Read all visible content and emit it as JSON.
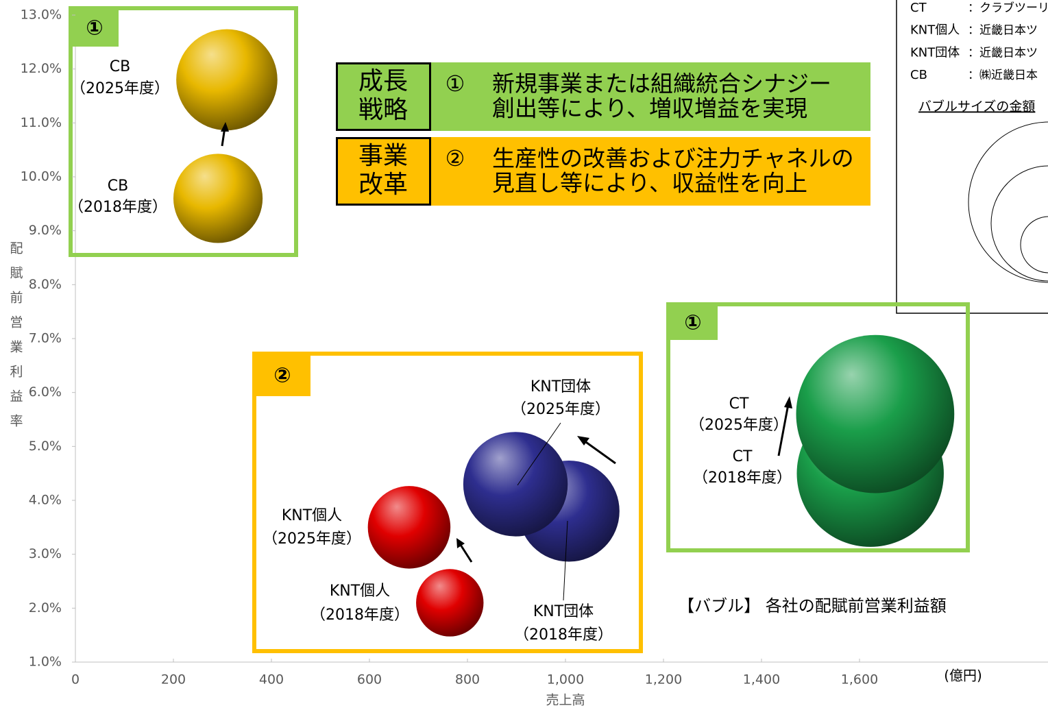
{
  "chart_data": {
    "type": "bubble",
    "xlabel": "売上高",
    "ylabel": "配賦前営業利益率",
    "x_unit": "(億円)",
    "xlim": [
      0,
      1980
    ],
    "ylim": [
      1,
      13
    ],
    "xticks": [
      0,
      200,
      400,
      600,
      800,
      {
        "value": 1000,
        "label": "1,000"
      },
      {
        "value": 1200,
        "label": "1,200"
      },
      {
        "value": 1400,
        "label": "1,400"
      },
      {
        "value": 1600,
        "label": "1,600"
      }
    ],
    "yticks": [
      {
        "value": 1,
        "label": "1.0%"
      },
      {
        "value": 2,
        "label": "2.0%"
      },
      {
        "value": 3,
        "label": "3.0%"
      },
      {
        "value": 4,
        "label": "4.0%"
      },
      {
        "value": 5,
        "label": "5.0%"
      },
      {
        "value": 6,
        "label": "6.0%"
      },
      {
        "value": 7,
        "label": "7.0%"
      },
      {
        "value": 8,
        "label": "8.0%"
      },
      {
        "value": 9,
        "label": "9.0%"
      },
      {
        "value": 10,
        "label": "10.0%"
      },
      {
        "value": 11,
        "label": "11.0%"
      },
      {
        "value": 12,
        "label": "12.0%"
      },
      {
        "value": 13,
        "label": "13.0%"
      }
    ],
    "series": [
      {
        "name": "CB",
        "color": "#e8b800",
        "x": [
          309,
          291
        ],
        "values": [
          11.8,
          9.6
        ],
        "sizes": [
          45,
          35
        ],
        "periods": [
          "（2025年度）",
          "（2018年度）"
        ]
      },
      {
        "name": "CT",
        "color": "#1a9e4a",
        "x": [
          1632,
          1622
        ],
        "values": [
          5.6,
          4.5
        ],
        "sizes": [
          110,
          95
        ],
        "periods": [
          "（2025年度）",
          "（2018年度）"
        ]
      },
      {
        "name": "KNT団体",
        "color": "#2e2e8f",
        "x": [
          898,
          1007
        ],
        "values": [
          4.3,
          3.8
        ],
        "sizes": [
          48,
          45
        ],
        "periods": [
          "（2025年度）",
          "（2018年度）"
        ]
      },
      {
        "name": "KNT個人",
        "color": "#e00000",
        "x": [
          681,
          764
        ],
        "values": [
          3.5,
          2.1
        ],
        "sizes": [
          30,
          20
        ],
        "periods": [
          "（2025年度）",
          "（2018年度）"
        ]
      }
    ],
    "legend": {
      "entries": [
        {
          "abbr": "CT",
          "desc": "：クラブツーリ"
        },
        {
          "abbr": "KNT個人",
          "desc": "：近畿日本ツ"
        },
        {
          "abbr": "KNT団体",
          "desc": "：近畿日本ツ"
        },
        {
          "abbr": "CB",
          "desc": "：㈱近畿日本"
        }
      ],
      "size_title": "バブルサイズの金額"
    },
    "bubble_note": "【バブル】 各社の配賦前営業利益額",
    "strategies": [
      {
        "tag": [
          "成長",
          "戦略"
        ],
        "num": "①",
        "text": [
          "新規事業または組織統合シナジー",
          "創出等により、増収増益を実現"
        ],
        "color": "#92d050"
      },
      {
        "tag": [
          "事業",
          "改革"
        ],
        "num": "②",
        "text": [
          "生産性の改善および注力チャネルの",
          "見直し等により、収益性を向上"
        ],
        "color": "#ffc000"
      }
    ],
    "groups": [
      {
        "badge": "①",
        "color": "#92d050"
      },
      {
        "badge": "①",
        "color": "#92d050"
      },
      {
        "badge": "②",
        "color": "#ffc000"
      }
    ]
  }
}
